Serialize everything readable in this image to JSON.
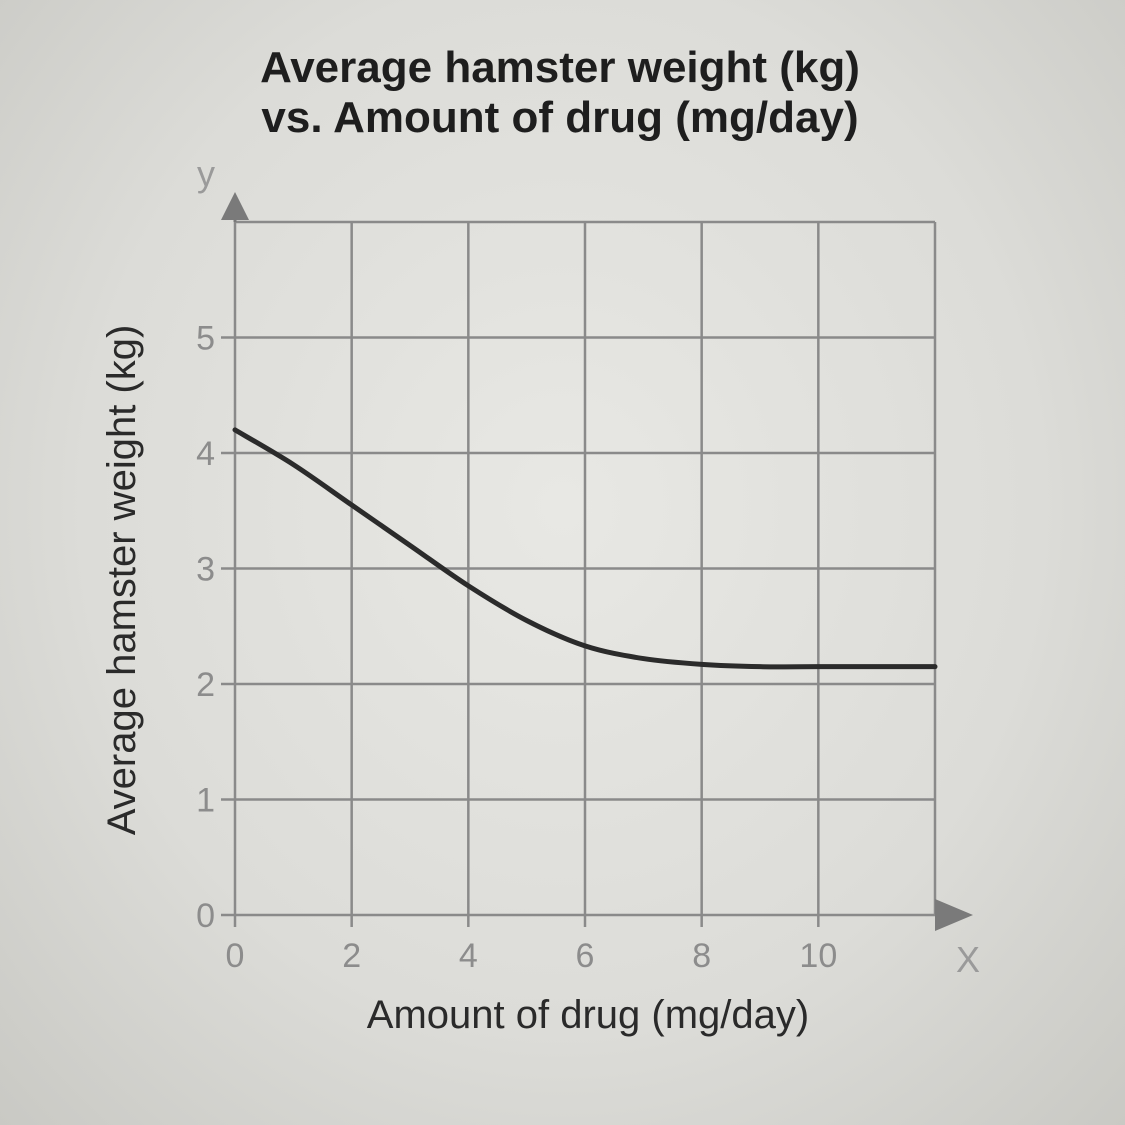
{
  "chart_data": {
    "type": "line",
    "title": "Average hamster weight (kg)",
    "subtitle": "vs. Amount of drug (mg/day)",
    "xlabel": "Amount of drug (mg/day)",
    "ylabel": "Average hamster weight (kg)",
    "x_axis_letter": "X",
    "y_axis_letter": "y",
    "xlim": [
      0,
      12
    ],
    "ylim": [
      0,
      6
    ],
    "x_ticks": [
      0,
      2,
      4,
      6,
      8,
      10
    ],
    "x_tick_labels": [
      "0",
      "2",
      "4",
      "6",
      "8",
      "10"
    ],
    "y_ticks": [
      0,
      1,
      2,
      3,
      4,
      5
    ],
    "y_tick_labels": [
      "0",
      "1",
      "2",
      "3",
      "4",
      "5"
    ],
    "grid": true,
    "series": [
      {
        "x": [
          0,
          1,
          2,
          3,
          4,
          5,
          6,
          7,
          8,
          9,
          10,
          11,
          12
        ],
        "y": [
          4.2,
          3.9,
          3.55,
          3.2,
          2.85,
          2.55,
          2.33,
          2.22,
          2.17,
          2.15,
          2.15,
          2.15,
          2.15
        ]
      }
    ],
    "colors": {
      "grid": "#8a8a8a",
      "line": "#2b2b2b",
      "axis_arrow": "#7a7a7a"
    }
  }
}
